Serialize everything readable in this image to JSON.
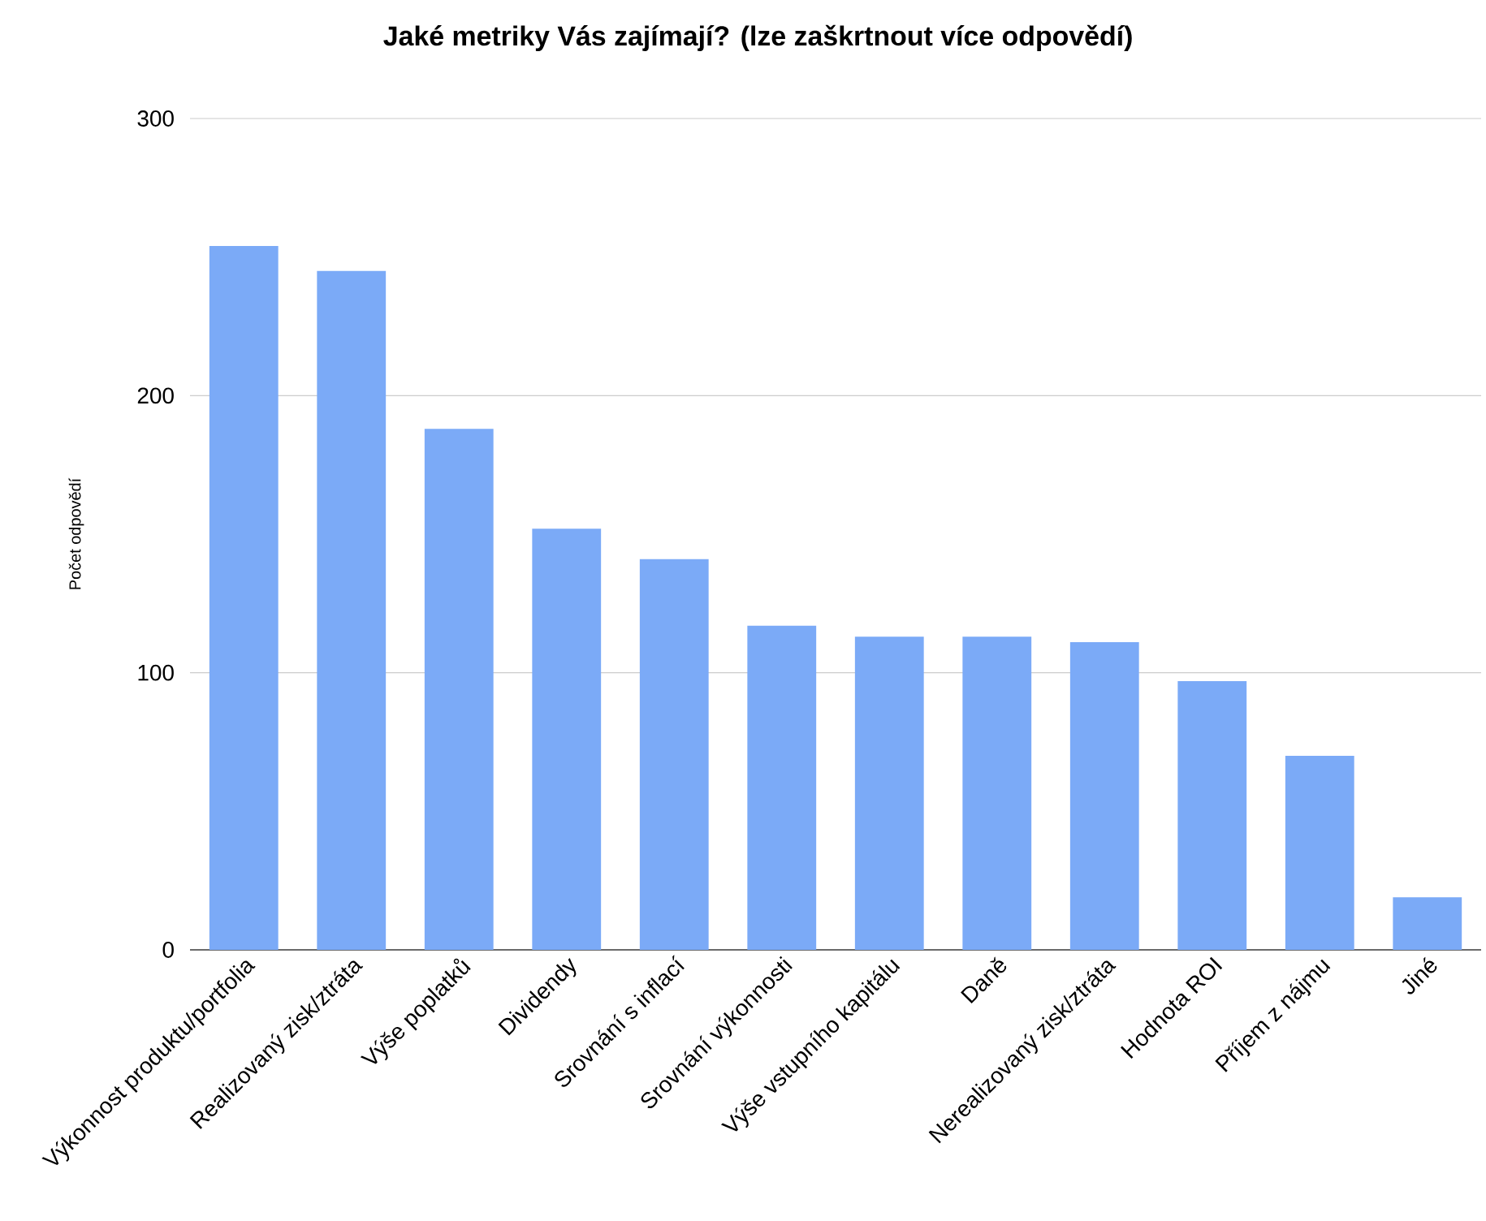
{
  "chart_data": {
    "type": "bar",
    "title": "Jaké metriky Vás zajímají?  (lze zaškrtnout více odpovědí)",
    "ylabel": "Počet odpovědí",
    "categories": [
      "Výkonnost produktu/portfolia",
      "Realizovaný zisk/ztráta",
      "Výše poplatků",
      "Dividendy",
      "Srovnání s inflací",
      "Srovnání výkonnosti",
      "Výše vstupního kapitálu",
      "Daně",
      "Nerealizovaný zisk/ztráta",
      "Hodnota ROI",
      "Příjem z nájmu",
      "Jiné"
    ],
    "values": [
      254,
      245,
      188,
      152,
      141,
      117,
      113,
      113,
      111,
      97,
      70,
      19
    ],
    "color": "#7baaf7",
    "ylim": [
      0,
      300
    ],
    "yticks": [
      0,
      100,
      200,
      300
    ],
    "grid": "y"
  }
}
